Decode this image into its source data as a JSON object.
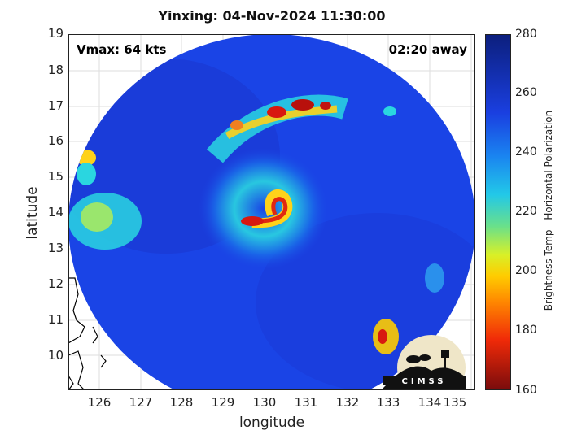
{
  "title": "Yinxing: 04-Nov-2024 11:30:00",
  "vmax": "Vmax: 64 kts",
  "time_away": "02:20 away",
  "xlabel": "longitude",
  "ylabel": "latitude",
  "x_ticks": [
    "126",
    "127",
    "128",
    "129",
    "130",
    "131",
    "132",
    "133",
    "134",
    "135"
  ],
  "y_ticks": [
    "19",
    "18",
    "17",
    "16",
    "15",
    "14",
    "13",
    "12",
    "11",
    "10"
  ],
  "colorbar": {
    "label": "Brightness Temp - Horizontal Polarization",
    "ticks": [
      "280",
      "260",
      "240",
      "220",
      "200",
      "180",
      "160"
    ],
    "range": [
      160,
      280
    ]
  },
  "logo_text": "CIMSS",
  "colors": {
    "background_field": "#1a44e6",
    "convection_cyan": "#2ad6e0",
    "convection_red": "#d81810",
    "land_outline": "#000000"
  }
}
